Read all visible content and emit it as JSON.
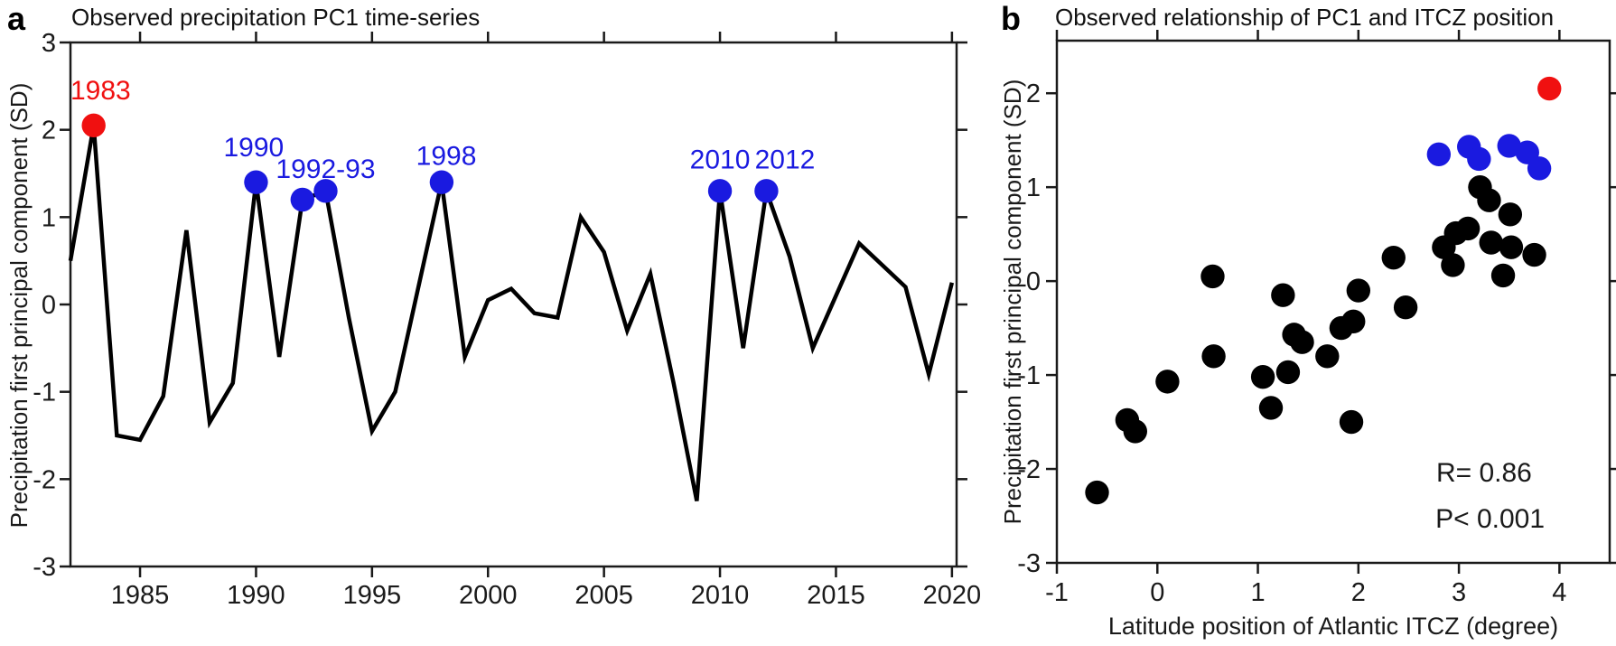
{
  "panel_letters": {
    "a": "a",
    "b": "b"
  },
  "colors": {
    "axis": "#1a1a1a",
    "line": "#000000",
    "red": "#f01010",
    "blue": "#1a1ae0"
  },
  "chart_data": [
    {
      "type": "line",
      "panel": "a",
      "title": "Observed precipitation PC1 time-series",
      "ylabel": "Precipitation first principal component (SD)",
      "xlabel": "",
      "xlim": [
        1982,
        2020.2
      ],
      "ylim": [
        -3,
        3
      ],
      "x_ticks": [
        1985,
        1990,
        1995,
        2000,
        2005,
        2010,
        2015,
        2020
      ],
      "y_ticks": [
        3,
        2,
        1,
        0,
        -1,
        -2,
        -3
      ],
      "grid": false,
      "line_color": "#000000",
      "x": [
        1982,
        1983,
        1984,
        1985,
        1986,
        1987,
        1988,
        1989,
        1990,
        1991,
        1992,
        1993,
        1994,
        1995,
        1996,
        1997,
        1998,
        1999,
        2000,
        2001,
        2002,
        2003,
        2004,
        2005,
        2006,
        2007,
        2008,
        2009,
        2010,
        2011,
        2012,
        2013,
        2014,
        2015,
        2016,
        2017,
        2018,
        2019,
        2020
      ],
      "values": [
        0.5,
        2.05,
        -1.5,
        -1.55,
        -1.05,
        0.85,
        -1.35,
        -0.9,
        1.4,
        -0.6,
        1.2,
        1.3,
        -0.15,
        -1.45,
        -1.0,
        0.2,
        1.4,
        -0.6,
        0.05,
        0.18,
        -0.1,
        -0.15,
        1.0,
        0.6,
        -0.3,
        0.35,
        -0.9,
        -2.25,
        1.3,
        -0.5,
        1.3,
        0.55,
        -0.5,
        0.1,
        0.7,
        0.45,
        0.2,
        -0.8,
        0.25
      ],
      "highlight_points": [
        {
          "year": 1983,
          "value": 2.05,
          "color": "#f01010"
        },
        {
          "year": 1990,
          "value": 1.4,
          "color": "#1a1ae0"
        },
        {
          "year": 1992,
          "value": 1.2,
          "color": "#1a1ae0"
        },
        {
          "year": 1993,
          "value": 1.3,
          "color": "#1a1ae0"
        },
        {
          "year": 1998,
          "value": 1.4,
          "color": "#1a1ae0"
        },
        {
          "year": 2010,
          "value": 1.3,
          "color": "#1a1ae0"
        },
        {
          "year": 2012,
          "value": 1.3,
          "color": "#1a1ae0"
        }
      ],
      "point_labels": [
        {
          "text": "1983",
          "x": 1983.3,
          "y": 2.45,
          "color": "#f01010"
        },
        {
          "text": "1990",
          "x": 1989.9,
          "y": 1.8,
          "color": "#1a1ae0"
        },
        {
          "text": "1992-93",
          "x": 1993.0,
          "y": 1.55,
          "color": "#1a1ae0"
        },
        {
          "text": "1998",
          "x": 1998.2,
          "y": 1.7,
          "color": "#1a1ae0"
        },
        {
          "text": "2010",
          "x": 2010.0,
          "y": 1.66,
          "color": "#1a1ae0"
        },
        {
          "text": "2012",
          "x": 2012.8,
          "y": 1.66,
          "color": "#1a1ae0"
        }
      ]
    },
    {
      "type": "scatter",
      "panel": "b",
      "title": "Observed relationship of PC1 and ITCZ position",
      "ylabel": "Precipitation first principal component (SD)",
      "xlabel": "Latitude position of Atlantic ITCZ (degree)",
      "xlim": [
        -1,
        4.5
      ],
      "ylim": [
        -3,
        2.56
      ],
      "x_ticks": [
        -1,
        0,
        1,
        2,
        3,
        4
      ],
      "y_ticks": [
        2,
        1,
        0,
        -1,
        -2,
        -3
      ],
      "grid": false,
      "series": [
        {
          "name": "other-years",
          "color": "#000000",
          "points": [
            [
              -0.6,
              -2.25
            ],
            [
              -0.3,
              -1.48
            ],
            [
              -0.22,
              -1.6
            ],
            [
              0.1,
              -1.07
            ],
            [
              0.55,
              0.05
            ],
            [
              0.56,
              -0.8
            ],
            [
              1.05,
              -1.02
            ],
            [
              1.13,
              -1.35
            ],
            [
              1.25,
              -0.15
            ],
            [
              1.3,
              -0.97
            ],
            [
              1.36,
              -0.57
            ],
            [
              1.44,
              -0.65
            ],
            [
              1.69,
              -0.8
            ],
            [
              1.83,
              -0.5
            ],
            [
              1.95,
              -0.43
            ],
            [
              1.93,
              -1.5
            ],
            [
              2.0,
              -0.1
            ],
            [
              2.35,
              0.25
            ],
            [
              2.47,
              -0.28
            ],
            [
              2.85,
              0.36
            ],
            [
              2.94,
              0.17
            ],
            [
              2.97,
              0.51
            ],
            [
              3.09,
              0.56
            ],
            [
              3.21,
              1.0
            ],
            [
              3.3,
              0.86
            ],
            [
              3.32,
              0.41
            ],
            [
              3.44,
              0.06
            ],
            [
              3.51,
              0.71
            ],
            [
              3.52,
              0.36
            ],
            [
              3.75,
              0.28
            ]
          ]
        },
        {
          "name": "blue-highlight-years",
          "color": "#1a1ae0",
          "points": [
            [
              2.8,
              1.35
            ],
            [
              3.1,
              1.43
            ],
            [
              3.2,
              1.3
            ],
            [
              3.5,
              1.44
            ],
            [
              3.68,
              1.37
            ],
            [
              3.8,
              1.2
            ]
          ]
        },
        {
          "name": "red-1983",
          "color": "#f01010",
          "points": [
            [
              3.9,
              2.05
            ]
          ]
        }
      ],
      "annotations": [
        {
          "text": "R= 0.86",
          "x": 3.25,
          "y": -2.04
        },
        {
          "text": "P< 0.001",
          "x": 3.31,
          "y": -2.53
        }
      ]
    }
  ]
}
